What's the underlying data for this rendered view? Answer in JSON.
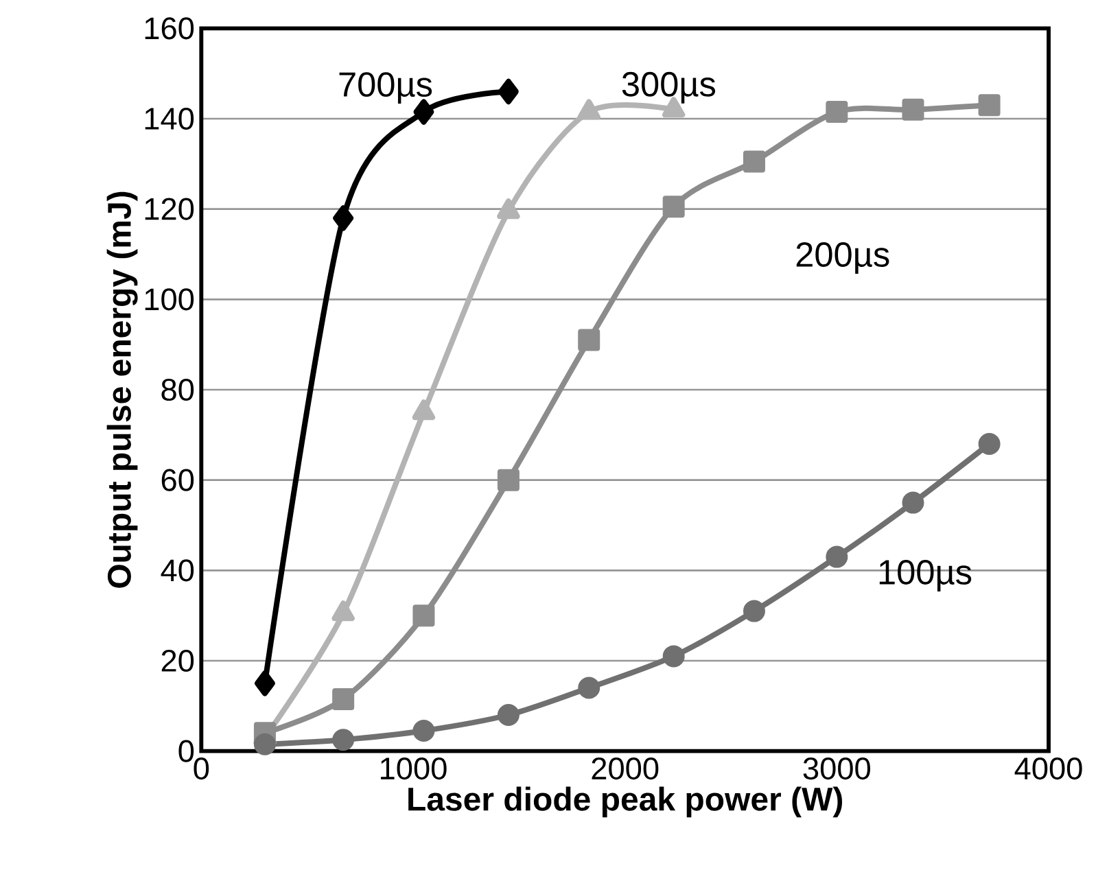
{
  "chart_data": {
    "type": "line",
    "xlabel": "Laser diode peak power (W)",
    "ylabel": "Output pulse energy (mJ)",
    "xlim": [
      0,
      4000
    ],
    "xticks": [
      0,
      1000,
      2000,
      3000,
      4000
    ],
    "ylim": [
      0,
      160
    ],
    "yticks": [
      0,
      20,
      40,
      60,
      80,
      100,
      120,
      140,
      160
    ],
    "grid": "y",
    "legend": false,
    "series": [
      {
        "name": "700µs",
        "color": "#000000",
        "marker": "diamond",
        "x": [
          300,
          670,
          1050,
          1450
        ],
        "values": [
          15,
          118,
          141.5,
          146
        ]
      },
      {
        "name": "300µs",
        "color": "#b3b3b3",
        "marker": "triangle",
        "x": [
          300,
          670,
          1050,
          1450,
          1830,
          2230
        ],
        "values": [
          3,
          30.5,
          75,
          119.5,
          141.5,
          142
        ]
      },
      {
        "name": "200µs",
        "color": "#8c8c8c",
        "marker": "square",
        "x": [
          300,
          670,
          1050,
          1450,
          1830,
          2230,
          2610,
          3000,
          3360,
          3720
        ],
        "values": [
          4,
          11.5,
          30,
          60,
          91,
          120.5,
          130.5,
          141.5,
          142,
          143
        ]
      },
      {
        "name": "100µs",
        "color": "#707070",
        "marker": "circle",
        "x": [
          300,
          670,
          1050,
          1450,
          1830,
          2230,
          2610,
          3000,
          3360,
          3720
        ],
        "values": [
          1.5,
          2.5,
          4.5,
          8,
          14,
          21,
          31,
          43,
          55,
          68
        ]
      }
    ]
  }
}
